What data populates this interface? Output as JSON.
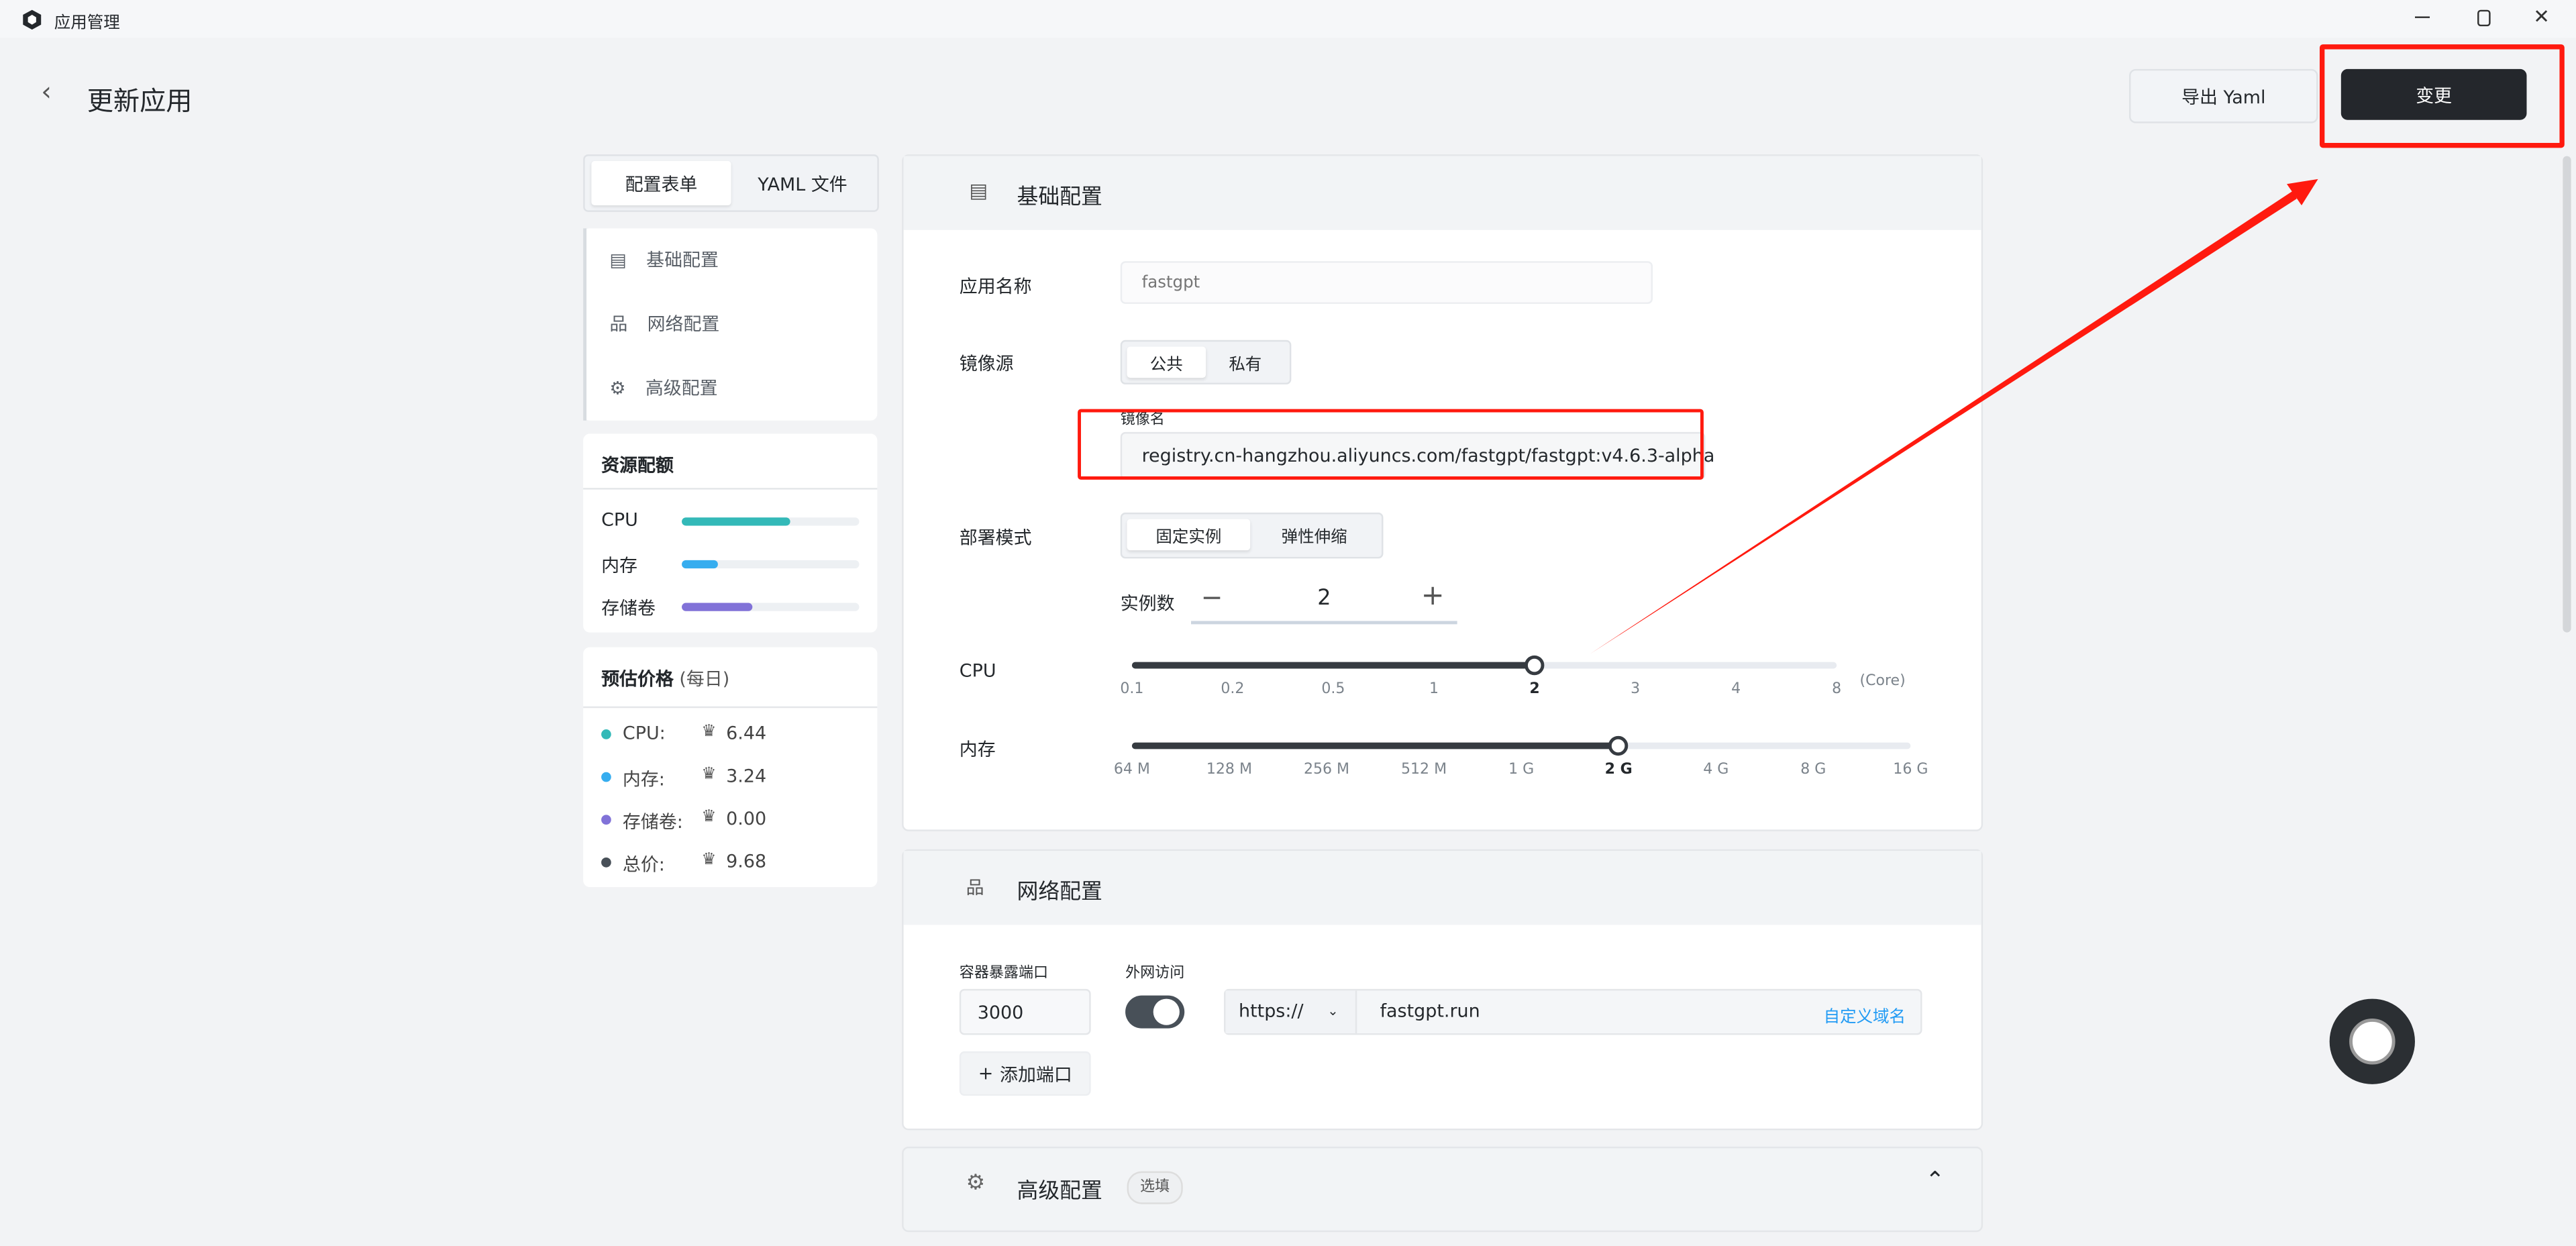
{
  "window": {
    "title": "应用管理",
    "minimize_icon": "minimize-icon",
    "restore_icon": "restore-icon",
    "close_icon": "close-icon"
  },
  "header": {
    "title": "更新应用",
    "export_label": "导出 Yaml",
    "submit_label": "变更"
  },
  "left": {
    "tabs": [
      "配置表单",
      "YAML 文件"
    ],
    "nav": [
      {
        "label": "基础配置",
        "icon": "document-icon"
      },
      {
        "label": "网络配置",
        "icon": "network-icon"
      },
      {
        "label": "高级配置",
        "icon": "gear-icon"
      }
    ],
    "quota": {
      "title": "资源配额",
      "items": [
        {
          "label": "CPU",
          "percent": 61,
          "color": "#33b9b8"
        },
        {
          "label": "内存",
          "percent": 20,
          "color": "#36adef"
        },
        {
          "label": "存储卷",
          "percent": 40,
          "color": "#8172d8"
        }
      ]
    },
    "price": {
      "title": "预估价格",
      "suffix": "(每日)",
      "items": [
        {
          "label": "CPU:",
          "value": "6.44",
          "color": "#33b9b8"
        },
        {
          "label": "内存:",
          "value": "3.24",
          "color": "#36adef"
        },
        {
          "label": "存储卷:",
          "value": "0.00",
          "color": "#8172d8"
        },
        {
          "label": "总价:",
          "value": "9.68",
          "color": "#485058"
        }
      ]
    }
  },
  "basic": {
    "title": "基础配置",
    "app_name_label": "应用名称",
    "app_name_placeholder": "fastgpt",
    "image_source_label": "镜像源",
    "image_source_options": [
      "公共",
      "私有"
    ],
    "image_name_label": "镜像名",
    "image_name_value": "registry.cn-hangzhou.aliyuncs.com/fastgpt/fastgpt:v4.6.3-alpha",
    "deploy_mode_label": "部署模式",
    "deploy_mode_options": [
      "固定实例",
      "弹性伸缩"
    ],
    "replicas_label": "实例数",
    "replicas_value": "2",
    "cpu_label": "CPU",
    "cpu_ticks": [
      "0.1",
      "0.2",
      "0.5",
      "1",
      "2",
      "3",
      "4",
      "8"
    ],
    "cpu_selected": "2",
    "cpu_unit": "(Core)",
    "mem_label": "内存",
    "mem_ticks": [
      "64 M",
      "128 M",
      "256 M",
      "512 M",
      "1 G",
      "2 G",
      "4 G",
      "8 G",
      "16 G"
    ],
    "mem_selected": "2 G"
  },
  "network": {
    "title": "网络配置",
    "port_label": "容器暴露端口",
    "port_value": "3000",
    "public_label": "外网访问",
    "public_enabled": true,
    "protocol": "https://",
    "domain": "fastgpt.run",
    "custom_domain_label": "自定义域名",
    "add_port_label": "添加端口"
  },
  "advanced": {
    "title": "高级配置",
    "badge": "选填"
  },
  "colors": {
    "primary": "#24272c",
    "link": "#219bf4",
    "annotation": "#ff1a0f"
  }
}
